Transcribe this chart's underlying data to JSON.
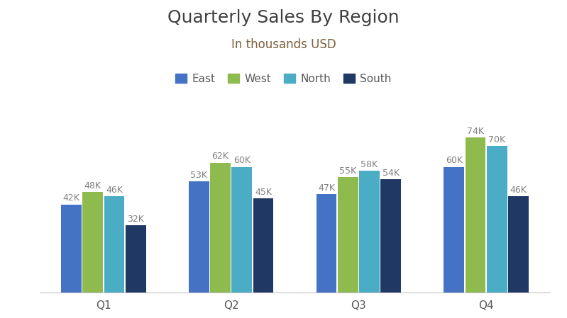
{
  "title": "Quarterly Sales By Region",
  "subtitle": "In thousands USD",
  "categories": [
    "Q1",
    "Q2",
    "Q3",
    "Q4"
  ],
  "series": [
    {
      "name": "East",
      "values": [
        42,
        53,
        47,
        60
      ],
      "color": "#4472C4"
    },
    {
      "name": "West",
      "values": [
        48,
        62,
        55,
        74
      ],
      "color": "#8FBA4E"
    },
    {
      "name": "North",
      "values": [
        46,
        60,
        58,
        70
      ],
      "color": "#4BACC6"
    },
    {
      "name": "South",
      "values": [
        32,
        45,
        54,
        46
      ],
      "color": "#1F3864"
    }
  ],
  "background_color": "#FFFFFF",
  "label_color": "#808080",
  "title_color": "#404040",
  "subtitle_color": "#7B5E3A",
  "axis_label_color": "#595959",
  "ylim": [
    0,
    88
  ],
  "bar_width": 0.16,
  "label_fontsize": 9,
  "title_fontsize": 18,
  "subtitle_fontsize": 12,
  "legend_fontsize": 11,
  "tick_fontsize": 11
}
